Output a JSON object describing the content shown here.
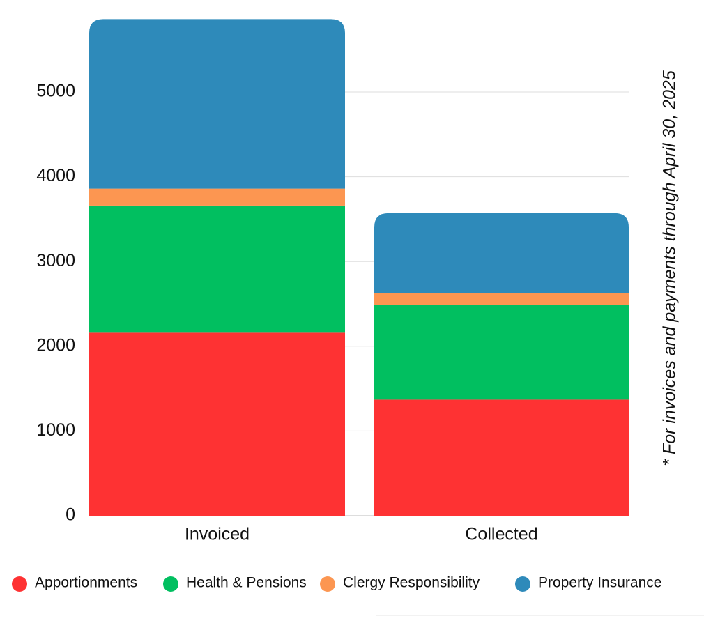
{
  "chart_data": {
    "type": "stacked_bar",
    "categories": [
      "Invoiced",
      "Collected"
    ],
    "series": [
      {
        "name": "Apportionments",
        "color": "#fe3233",
        "values": [
          2160,
          1370
        ]
      },
      {
        "name": "Health & Pensions",
        "color": "#01bf60",
        "values": [
          1500,
          1120
        ]
      },
      {
        "name": "Clergy Responsibility",
        "color": "#fc9651",
        "values": [
          200,
          140
        ]
      },
      {
        "name": "Property Insurance",
        "color": "#2e8aba",
        "values": [
          2000,
          940
        ]
      }
    ],
    "ylim": [
      0,
      6000
    ],
    "yticks": [
      0,
      1000,
      2000,
      3000,
      4000,
      5000
    ],
    "grid": true,
    "annotation": "* For invoices and payments through April 30, 2025"
  }
}
